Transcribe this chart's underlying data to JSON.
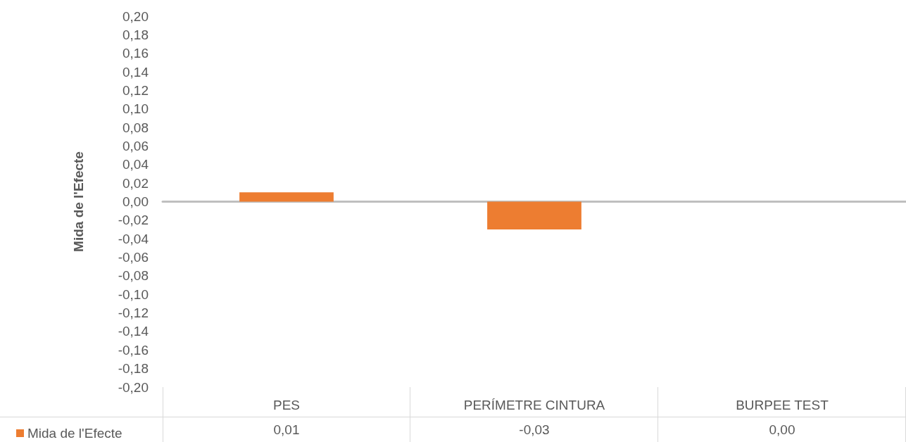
{
  "chart_data": {
    "type": "bar",
    "ylabel": "Mida de l'Efecte",
    "categories": [
      "PES",
      "PERÍMETRE CINTURA",
      "BURPEE TEST"
    ],
    "series": [
      {
        "name": "Mida de l'Efecte",
        "color": "#ed7d31",
        "values": [
          0.01,
          -0.03,
          0.0
        ],
        "value_labels": [
          "0,01",
          "-0,03",
          "0,00"
        ]
      }
    ],
    "ylim": [
      -0.2,
      0.2
    ],
    "yticks": [
      {
        "value": -0.2,
        "label": "-0,20"
      },
      {
        "value": -0.18,
        "label": "-0,18"
      },
      {
        "value": -0.16,
        "label": "-0,16"
      },
      {
        "value": -0.14,
        "label": "-0,14"
      },
      {
        "value": -0.12,
        "label": "-0,12"
      },
      {
        "value": -0.1,
        "label": "-0,10"
      },
      {
        "value": -0.08,
        "label": "-0,08"
      },
      {
        "value": -0.06,
        "label": "-0,06"
      },
      {
        "value": -0.04,
        "label": "-0,04"
      },
      {
        "value": -0.02,
        "label": "-0,02"
      },
      {
        "value": 0,
        "label": "0,00"
      },
      {
        "value": 0.02,
        "label": "0,02"
      },
      {
        "value": 0.04,
        "label": "0,04"
      },
      {
        "value": 0.06,
        "label": "0,06"
      },
      {
        "value": 0.08,
        "label": "0,08"
      },
      {
        "value": 0.1,
        "label": "0,10"
      },
      {
        "value": 0.12,
        "label": "0,12"
      },
      {
        "value": 0.14,
        "label": "0,14"
      },
      {
        "value": 0.16,
        "label": "0,16"
      },
      {
        "value": 0.18,
        "label": "0,18"
      },
      {
        "value": 0.2,
        "label": "0,20"
      }
    ],
    "legend": "bottom"
  }
}
